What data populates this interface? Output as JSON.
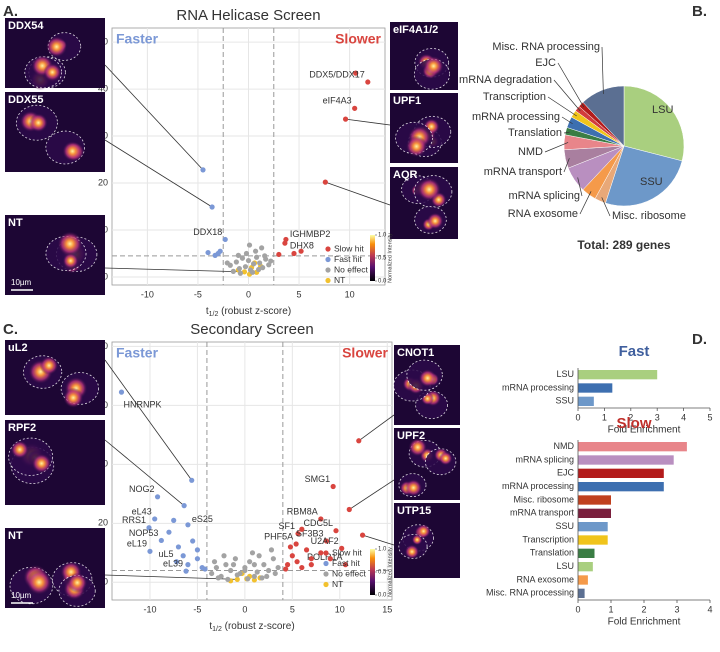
{
  "panels": [
    "A.",
    "B.",
    "C.",
    "D."
  ],
  "chart_data": [
    {
      "type": "scatter",
      "title": "RNA Helicase Screen",
      "label_left": "Faster",
      "label_right": "Slower",
      "x_label": [
        "t",
        "1/2",
        " (robust z-score)"
      ],
      "y_label": "−ln(p)",
      "xlim": [
        -13.5,
        13.5
      ],
      "ylim": [
        -1.7,
        53
      ],
      "xticks": [
        -10,
        -5,
        0,
        5,
        10
      ],
      "yticks": [
        0,
        10,
        20,
        30,
        40,
        50
      ],
      "grid": true,
      "vlines": [
        -2.5,
        2.5
      ],
      "hline": 4.5,
      "series": [
        {
          "name": "Slow hit",
          "color": "#d9453f",
          "x": [
            10.6,
            11.8,
            10.5,
            9.6,
            7.6,
            3.7,
            3.6,
            4.5,
            5.2,
            3.0
          ],
          "values": [
            43.4,
            41.5,
            35.9,
            33.6,
            20.2,
            8.0,
            7.2,
            5.0,
            5.5,
            4.8
          ],
          "labels": [
            null,
            "DDX5/DDX17",
            "eIF4A3",
            null,
            null,
            "IGHMBP2",
            "DHX8",
            null,
            null,
            null
          ]
        },
        {
          "name": "Fast hit",
          "color": "#7b98d6",
          "x": [
            -4.5,
            -3.6,
            -2.3,
            -3.0,
            -2.8,
            -3.3,
            -4.0
          ],
          "values": [
            22.8,
            14.9,
            8.0,
            5.0,
            5.5,
            4.6,
            5.2
          ],
          "labels": [
            null,
            null,
            "DDX18",
            null,
            null,
            null,
            null
          ]
        },
        {
          "name": "No effect",
          "color": "#a3a3a3",
          "x": [
            -1.8,
            -1.2,
            -0.9,
            -0.6,
            -0.3,
            0,
            0.2,
            0.5,
            0.8,
            1.1,
            1.4,
            1.7,
            2.0,
            -1.5,
            -0.8,
            0.4,
            1.0,
            1.6,
            2.2,
            -2.1,
            -0.2,
            0.7,
            1.3,
            -1.0,
            0.1
          ],
          "values": [
            2.5,
            3.2,
            1.8,
            4.0,
            2.2,
            3.5,
            1.5,
            2.8,
            4.2,
            3.0,
            2.0,
            3.8,
            2.6,
            1.2,
            0.8,
            1.0,
            1.6,
            4.5,
            3.4,
            3.0,
            5.0,
            5.5,
            6.2,
            4.6,
            6.8
          ]
        },
        {
          "name": "NT",
          "color": "#f2c12e",
          "x": [
            -0.4,
            0.3,
            0.8,
            -1.0,
            1.2,
            0.1,
            0.6
          ],
          "values": [
            1.1,
            2.0,
            1.0,
            1.5,
            2.3,
            0.6,
            3.0
          ]
        }
      ],
      "colorbar": {
        "label": "Normalized Intensity",
        "ticks": [
          {
            "value": 0,
            "label": "0.0"
          },
          {
            "value": 0.5,
            "label": "0.5"
          },
          {
            "value": 1,
            "label": "1.0"
          }
        ]
      },
      "images": [
        "DDX54",
        "DDX55",
        "NT",
        "eIF4A1/2",
        "UPF1",
        "AQR"
      ],
      "scale_bar": "10µm"
    },
    {
      "type": "pie",
      "categories": [
        "LSU",
        "SSU",
        "Misc. ribosome",
        "RNA exosome",
        "mRNA splicing",
        "mRNA transport",
        "NMD",
        "Translation",
        "mRNA processing",
        "Transcription",
        "mRNA degradation",
        "EJC",
        "Misc. RNA processing"
      ],
      "values": [
        29,
        26,
        3,
        4,
        7,
        5,
        4,
        2,
        3,
        2,
        1.5,
        1.5,
        12
      ],
      "colors": [
        "#a9cf7f",
        "#6d98c9",
        "#e8a878",
        "#f59a4a",
        "#b98fc0",
        "#a97f9f",
        "#e8858a",
        "#3a7d44",
        "#3d6fb0",
        "#f0c41b",
        "#d23c3c",
        "#b31b1b",
        "#5b6f92"
      ],
      "total_label": "Total: 289 genes"
    },
    {
      "type": "scatter",
      "title": "Secondary Screen",
      "label_left": "Faster",
      "label_right": "Slower",
      "x_label": [
        "t",
        "1/2",
        " (robust z-score)"
      ],
      "y_label": "−ln(p)",
      "xlim": [
        -14,
        15.5
      ],
      "ylim": [
        -6,
        81.5
      ],
      "xticks": [
        -10,
        -5,
        0,
        5,
        10,
        15
      ],
      "yticks": [
        0,
        20,
        40,
        60,
        80
      ],
      "grid": true,
      "vlines": [
        -4,
        4
      ],
      "hline": 4,
      "series": [
        {
          "name": "Slow hit",
          "color": "#d9453f",
          "x": [
            12,
            9.3,
            11,
            8,
            9.6,
            5.6,
            8.6,
            5.4,
            10.2,
            10.6,
            12.4,
            4.5,
            5,
            6,
            7,
            6.5,
            4.3,
            5.5,
            8,
            7,
            9,
            4.8,
            6
          ],
          "values": [
            48,
            32.5,
            24.7,
            21.5,
            17.5,
            16.5,
            14,
            13,
            11.5,
            6,
            16,
            6,
            9,
            5,
            8,
            11,
            4.5,
            7,
            10,
            6,
            8,
            12,
            18
          ],
          "labels": [
            null,
            "SMG1",
            null,
            "RBM8A",
            "CDC5L",
            "SF1",
            "SF3B3",
            "PHF5A",
            "U2AF2",
            "POLR1A",
            null,
            null,
            null,
            null,
            null,
            null,
            null,
            null,
            null,
            null,
            null,
            null,
            null
          ]
        },
        {
          "name": "Fast hit",
          "color": "#7b98d6",
          "x": [
            -13,
            -5.6,
            -9.2,
            -6.4,
            -9.5,
            -6,
            -10.1,
            -8.8,
            -10,
            -7.2,
            -6.2,
            -8,
            -7,
            -6.5,
            -5.5,
            -5,
            -4.5,
            -7.5,
            -5,
            -6,
            -4.2
          ],
          "values": [
            64.5,
            34.6,
            29,
            26,
            21.5,
            19.5,
            18.5,
            14.2,
            10.5,
            7,
            3.8,
            17,
            12,
            9,
            14,
            8,
            5,
            21,
            11,
            6,
            4.5
          ],
          "labels": [
            "HNRNPK",
            null,
            "NOG2",
            null,
            "eL43",
            "eS25",
            "RRS1",
            "NOP53",
            "eL19",
            "uL5",
            "eL39",
            null,
            null,
            null,
            null,
            null,
            null,
            null,
            null,
            null,
            null
          ]
        },
        {
          "name": "No effect",
          "color": "#a3a3a3",
          "x": [
            -3.5,
            -3,
            -2.5,
            -2,
            -1.5,
            -1,
            -0.5,
            0,
            0.5,
            1,
            1.5,
            2,
            2.5,
            3,
            3.5,
            -2.8,
            -1.8,
            -0.8,
            0.3,
            1.3,
            2.3,
            3.2,
            -3.2,
            -1.2,
            0.8,
            1.8,
            2.8,
            -2.2,
            0,
            1
          ],
          "values": [
            3,
            5,
            2,
            6,
            4,
            8,
            3,
            5,
            7,
            2,
            9,
            6,
            4,
            8,
            5,
            1.5,
            1,
            2.5,
            1.2,
            3.5,
            2,
            3,
            7,
            6,
            10,
            1.5,
            11,
            9,
            4,
            6
          ]
        },
        {
          "name": "NT",
          "color": "#f2c12e",
          "x": [
            -0.8,
            0.5,
            1,
            -0.3,
            1.6,
            -1.5,
            0.2
          ],
          "values": [
            1,
            2,
            0.8,
            3,
            1.5,
            0.5,
            1.2
          ]
        }
      ],
      "colorbar": {
        "label": "Normalized Intensity",
        "ticks": [
          {
            "value": 0,
            "label": "0.0"
          },
          {
            "value": 0.5,
            "label": "0.5"
          },
          {
            "value": 1,
            "label": "1.0"
          }
        ]
      },
      "images": [
        "uL2",
        "RPF2",
        "NT",
        "CNOT1",
        "UPF2",
        "UTP15"
      ],
      "scale_bar": "10µm"
    },
    {
      "type": "bar",
      "orientation": "horizontal",
      "title": "Fast",
      "title_color": "#3f5f9e",
      "categories": [
        "LSU",
        "mRNA processing",
        "SSU"
      ],
      "values": [
        3.0,
        1.3,
        0.6
      ],
      "colors": [
        "#a9cf7f",
        "#3d6fb0",
        "#6d98c9"
      ],
      "xlim": [
        0,
        5
      ],
      "xticks": [
        0,
        1,
        2,
        3,
        4,
        5
      ],
      "x_label": "Fold Enrichment"
    },
    {
      "type": "bar",
      "orientation": "horizontal",
      "title": "Slow",
      "title_color": "#c0302b",
      "categories": [
        "NMD",
        "mRNA splicing",
        "EJC",
        "mRNA processing",
        "Misc. ribosome",
        "mRNA transport",
        "SSU",
        "Transcription",
        "Translation",
        "LSU",
        "RNA exosome",
        "Misc. RNA processing"
      ],
      "values": [
        3.3,
        2.9,
        2.6,
        2.6,
        1.0,
        1.0,
        0.9,
        0.9,
        0.5,
        0.45,
        0.3,
        0.2
      ],
      "colors": [
        "#e8858a",
        "#b98fc0",
        "#b31b1b",
        "#3d6fb0",
        "#c0401e",
        "#7a1f3d",
        "#6d98c9",
        "#f0c41b",
        "#3a7d44",
        "#a9cf7f",
        "#f59a4a",
        "#5b6f92"
      ],
      "xlim": [
        0,
        4
      ],
      "xticks": [
        0,
        1,
        2,
        3,
        4
      ],
      "x_label": "Fold Enrichment"
    }
  ]
}
